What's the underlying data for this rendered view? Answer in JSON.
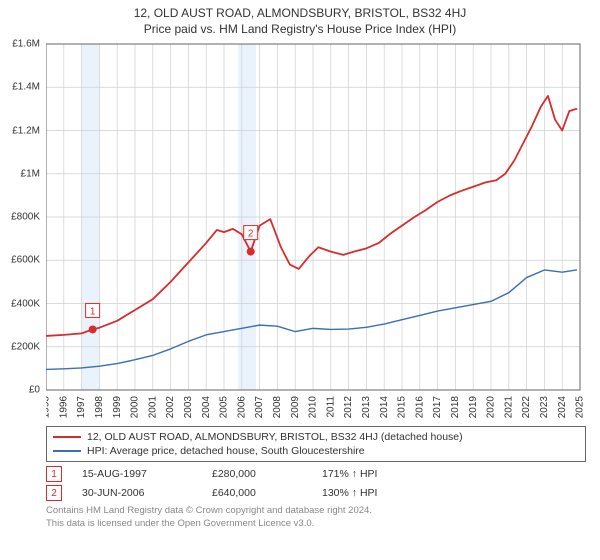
{
  "title": "12, OLD AUST ROAD, ALMONDSBURY, BRISTOL, BS32 4HJ",
  "subtitle": "Price paid vs. HM Land Registry's House Price Index (HPI)",
  "chart": {
    "type": "line",
    "background_color": "#ffffff",
    "grid_color": "#cfcfcf",
    "axis_color": "#666666",
    "highlight_band_color": "#eaf2fb",
    "title_fontsize": 12,
    "label_fontsize": 10,
    "x": {
      "min": 1995,
      "max": 2025,
      "ticks": [
        1995,
        1996,
        1997,
        1998,
        1999,
        2000,
        2001,
        2002,
        2003,
        2004,
        2005,
        2006,
        2007,
        2008,
        2009,
        2010,
        2011,
        2012,
        2013,
        2014,
        2015,
        2016,
        2017,
        2018,
        2019,
        2020,
        2021,
        2022,
        2023,
        2024,
        2025
      ]
    },
    "y": {
      "min": 0,
      "max": 1600000,
      "ticks": [
        0,
        200000,
        400000,
        600000,
        800000,
        1000000,
        1200000,
        1400000,
        1600000
      ],
      "tick_labels": [
        "£0",
        "£200K",
        "£400K",
        "£600K",
        "£800K",
        "£1M",
        "£1.2M",
        "£1.4M",
        "£1.6M"
      ]
    },
    "highlight_bands": [
      {
        "from": 1997.0,
        "to": 1998.0
      },
      {
        "from": 2005.8,
        "to": 2006.8
      }
    ],
    "series": [
      {
        "id": "price_paid",
        "label": "12, OLD AUST ROAD, ALMONDSBURY, BRISTOL, BS32 4HJ (detached house)",
        "color": "#d82c2c",
        "line_width": 1.8,
        "points": [
          [
            1995.0,
            250000
          ],
          [
            1996.0,
            255000
          ],
          [
            1997.0,
            262000
          ],
          [
            1997.62,
            280000
          ],
          [
            1998.0,
            288000
          ],
          [
            1999.0,
            320000
          ],
          [
            2000.0,
            370000
          ],
          [
            2001.0,
            420000
          ],
          [
            2002.0,
            500000
          ],
          [
            2003.0,
            590000
          ],
          [
            2004.0,
            680000
          ],
          [
            2004.6,
            740000
          ],
          [
            2005.0,
            730000
          ],
          [
            2005.5,
            745000
          ],
          [
            2006.0,
            720000
          ],
          [
            2006.5,
            640000
          ],
          [
            2007.0,
            760000
          ],
          [
            2007.6,
            790000
          ],
          [
            2008.2,
            660000
          ],
          [
            2008.7,
            580000
          ],
          [
            2009.2,
            560000
          ],
          [
            2009.8,
            620000
          ],
          [
            2010.3,
            660000
          ],
          [
            2011.0,
            640000
          ],
          [
            2011.7,
            625000
          ],
          [
            2012.3,
            640000
          ],
          [
            2013.0,
            655000
          ],
          [
            2013.7,
            680000
          ],
          [
            2014.3,
            720000
          ],
          [
            2015.0,
            760000
          ],
          [
            2015.7,
            800000
          ],
          [
            2016.3,
            830000
          ],
          [
            2017.0,
            870000
          ],
          [
            2017.7,
            900000
          ],
          [
            2018.3,
            920000
          ],
          [
            2019.0,
            940000
          ],
          [
            2019.7,
            960000
          ],
          [
            2020.3,
            970000
          ],
          [
            2020.8,
            1000000
          ],
          [
            2021.3,
            1060000
          ],
          [
            2021.8,
            1140000
          ],
          [
            2022.3,
            1220000
          ],
          [
            2022.8,
            1310000
          ],
          [
            2023.2,
            1360000
          ],
          [
            2023.6,
            1250000
          ],
          [
            2024.0,
            1200000
          ],
          [
            2024.4,
            1290000
          ],
          [
            2024.8,
            1300000
          ]
        ]
      },
      {
        "id": "hpi",
        "label": "HPI: Average price, detached house, South Gloucestershire",
        "color": "#3a6fb0",
        "line_width": 1.4,
        "points": [
          [
            1995.0,
            95000
          ],
          [
            1996.0,
            98000
          ],
          [
            1997.0,
            102000
          ],
          [
            1998.0,
            110000
          ],
          [
            1999.0,
            122000
          ],
          [
            2000.0,
            140000
          ],
          [
            2001.0,
            160000
          ],
          [
            2002.0,
            190000
          ],
          [
            2003.0,
            225000
          ],
          [
            2004.0,
            255000
          ],
          [
            2005.0,
            270000
          ],
          [
            2006.0,
            285000
          ],
          [
            2007.0,
            300000
          ],
          [
            2008.0,
            295000
          ],
          [
            2009.0,
            270000
          ],
          [
            2010.0,
            285000
          ],
          [
            2011.0,
            280000
          ],
          [
            2012.0,
            282000
          ],
          [
            2013.0,
            290000
          ],
          [
            2014.0,
            305000
          ],
          [
            2015.0,
            325000
          ],
          [
            2016.0,
            345000
          ],
          [
            2017.0,
            365000
          ],
          [
            2018.0,
            380000
          ],
          [
            2019.0,
            395000
          ],
          [
            2020.0,
            410000
          ],
          [
            2021.0,
            450000
          ],
          [
            2022.0,
            520000
          ],
          [
            2023.0,
            555000
          ],
          [
            2024.0,
            545000
          ],
          [
            2024.8,
            555000
          ]
        ]
      }
    ],
    "sale_markers": [
      {
        "n": "1",
        "x": 1997.62,
        "y": 280000,
        "color": "#d82c2c"
      },
      {
        "n": "2",
        "x": 2006.5,
        "y": 640000,
        "color": "#d82c2c"
      }
    ]
  },
  "legend": {
    "border_color": "#666666",
    "items": [
      {
        "color": "#d82c2c",
        "label": "12, OLD AUST ROAD, ALMONDSBURY, BRISTOL, BS32 4HJ (detached house)"
      },
      {
        "color": "#3a6fb0",
        "label": "HPI: Average price, detached house, South Gloucestershire"
      }
    ]
  },
  "sales": [
    {
      "n": "1",
      "date": "15-AUG-1997",
      "price": "£280,000",
      "vs_hpi": "171% ↑ HPI"
    },
    {
      "n": "2",
      "date": "30-JUN-2006",
      "price": "£640,000",
      "vs_hpi": "130% ↑ HPI"
    }
  ],
  "credits": {
    "line1": "Contains HM Land Registry data © Crown copyright and database right 2024.",
    "line2": "This data is licensed under the Open Government Licence v3.0."
  }
}
